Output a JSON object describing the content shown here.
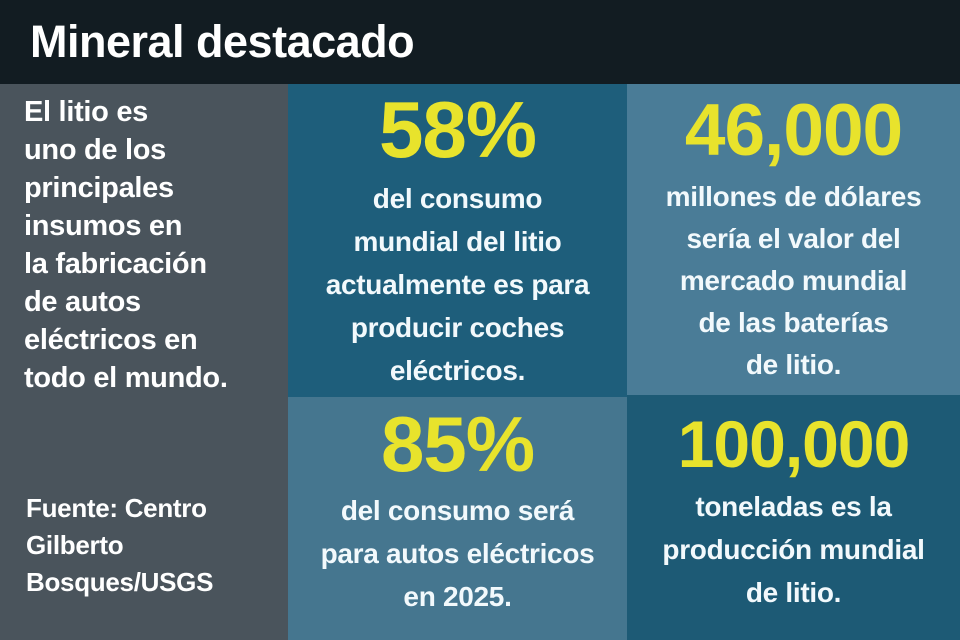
{
  "title": "Mineral destacado",
  "intro": {
    "text": "El litio es uno de los principales insumos en la fabricación de autos eléctricos en todo el mundo.",
    "lines": [
      "El litio es",
      "uno de los",
      "principales",
      "insumos en",
      "la fabricación",
      "de autos",
      "eléctricos en",
      "todo el mundo."
    ]
  },
  "source": {
    "text": "Fuente: Centro Gilberto Bosques/USGS",
    "lines": [
      "Fuente: Centro",
      "Gilberto",
      "Bosques/USGS"
    ]
  },
  "stats": [
    {
      "value": "58%",
      "text": "del consumo mundial del litio actualmente es para producir coches eléctricos.",
      "lines": [
        "del consumo",
        "mundial del litio",
        "actualmente es para",
        "producir coches",
        "eléctricos."
      ]
    },
    {
      "value": "46,000",
      "text": "millones de dólares sería el valor del mercado mundial de las baterías de litio.",
      "lines": [
        "millones de dólares",
        "sería el valor del",
        "mercado mundial",
        "de las baterías",
        "de litio."
      ]
    },
    {
      "value": "85%",
      "text": "del consumo será para autos eléctricos en 2025.",
      "lines": [
        "del consumo será",
        "para autos eléctricos",
        "en 2025."
      ]
    },
    {
      "value": "100,000",
      "text": "toneladas es la producción mundial de litio.",
      "lines": [
        "toneladas es la",
        "producción mundial",
        "de litio."
      ]
    }
  ],
  "colors": {
    "header_bg": "#121c22",
    "intro_bg": "#4a545c",
    "panel_dark_a": "#1e5e7b",
    "panel_dark_b": "#1d5a75",
    "panel_light_a": "#4a7c97",
    "panel_light_b": "#45768f",
    "accent_yellow": "#e8e32c",
    "title_text": "#ffffff",
    "body_text": "#ffffff",
    "panel_text": "#f2f9fc"
  },
  "chart_data": {
    "type": "table",
    "title": "Mineral destacado",
    "subtitle": "El litio es uno de los principales insumos en la fabricación de autos eléctricos en todo el mundo.",
    "rows": [
      {
        "value": "58%",
        "numeric": 58,
        "unit": "% del consumo mundial",
        "description": "del consumo mundial del litio actualmente es para producir coches eléctricos."
      },
      {
        "value": "46,000",
        "numeric": 46000,
        "unit": "millones de dólares",
        "description": "millones de dólares sería el valor del mercado mundial de las baterías de litio."
      },
      {
        "value": "85%",
        "numeric": 85,
        "unit": "% del consumo",
        "description": "del consumo será para autos eléctricos en 2025."
      },
      {
        "value": "100,000",
        "numeric": 100000,
        "unit": "toneladas",
        "description": "toneladas es la producción mundial de litio."
      }
    ],
    "source": "Fuente: Centro Gilberto Bosques/USGS",
    "legend_position": "none",
    "grid": false
  }
}
